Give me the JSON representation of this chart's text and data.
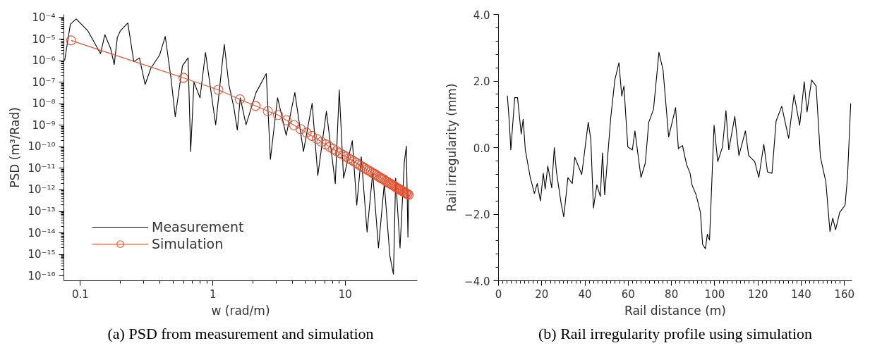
{
  "chart_data": [
    {
      "type": "line",
      "xlabel": "w (rad/m)",
      "ylabel": "PSD (m³/Rad)",
      "log": "xy",
      "grid": false,
      "legend": "bottom left",
      "xlim": [
        0.075,
        35
      ],
      "xticks": [
        0.1,
        1,
        10
      ],
      "ylim": [
        6e-17,
        0.00014
      ],
      "yticks": [
        {
          "value": 0.0001,
          "label": "10⁻⁴"
        },
        {
          "value": 1e-05,
          "label": "10⁻⁵"
        },
        {
          "value": 1e-06,
          "label": "10⁻⁶"
        },
        {
          "value": 1e-07,
          "label": "10⁻⁷"
        },
        {
          "value": 1e-08,
          "label": "10⁻⁸"
        },
        {
          "value": 1e-09,
          "label": "10⁻⁹"
        },
        {
          "value": 1e-10,
          "label": "10⁻¹⁰"
        },
        {
          "value": 1e-11,
          "label": "10⁻¹¹"
        },
        {
          "value": 1e-12,
          "label": "10⁻¹²"
        },
        {
          "value": 1e-13,
          "label": "10⁻¹³"
        },
        {
          "value": 1e-14,
          "label": "10⁻¹⁴"
        },
        {
          "value": 1e-15,
          "label": "10⁻¹⁵"
        },
        {
          "value": 1e-16,
          "label": "10⁻¹⁶"
        }
      ],
      "annotations": [
        "(a) PSD from measurement and simulation"
      ],
      "series": [
        {
          "name": "Measurement",
          "color": "#000000",
          "marker": "none",
          "x": [
            0.076,
            0.084,
            0.093,
            0.114,
            0.142,
            0.153,
            0.169,
            0.18,
            0.19,
            0.2,
            0.228,
            0.253,
            0.279,
            0.308,
            0.34,
            0.396,
            0.437,
            0.484,
            0.52,
            0.59,
            0.65,
            0.68,
            0.72,
            0.8,
            0.88,
            1.05,
            1.22,
            1.32,
            1.44,
            1.53,
            1.61,
            1.78,
            2.12,
            2.53,
            2.72,
            3.08,
            3.58,
            4.16,
            4.83,
            5.62,
            6.2,
            7.2,
            8.4,
            9.0,
            9.7,
            11.3,
            12.2,
            13.2,
            14.6,
            16.1,
            17.8,
            19.7,
            21.7,
            23.1,
            24.0,
            25.9,
            27.9,
            28.9,
            29.7,
            30.1
          ],
          "values": [
            1e-06,
            4.9e-05,
            8.7e-05,
            2.4e-05,
            2.1e-06,
            1.6e-05,
            3.7e-06,
            6.6e-07,
            1.2e-05,
            2.4e-05,
            5.6e-05,
            8.9e-07,
            1.35e-06,
            7.8e-08,
            4.4e-07,
            1.8e-06,
            1.35e-05,
            1.4e-07,
            2.5e-09,
            5.8e-07,
            1.35e-06,
            6e-11,
            1e-07,
            1.9e-08,
            2.4e-06,
            1.05e-09,
            5.7e-06,
            7.8e-08,
            6.8e-09,
            6e-10,
            1.9e-08,
            1.05e-09,
            3.3e-08,
            2.5e-07,
            2.6e-11,
            1.9e-08,
            3.4e-10,
            3.3e-08,
            6e-11,
            1.05e-08,
            4.6e-12,
            4.5e-09,
            1.95e-12,
            4.4e-08,
            3.5e-12,
            1.9e-10,
            1.95e-13,
            3.4e-11,
            1.1e-14,
            6.2e-12,
            2e-15,
            1.95e-12,
            8.5e-16,
            1.2e-16,
            3.5e-12,
            2e-15,
            1.9e-11,
            1.07e-10,
            6.3e-15,
            6.2e-13
          ]
        },
        {
          "name": "Simulation",
          "color": "#e8502e",
          "marker": "circle",
          "x": [
            0.085,
            0.6,
            1.1,
            1.6,
            2.1,
            2.6,
            3.1,
            3.6,
            4.1,
            4.6,
            5.1,
            5.6,
            6.1,
            6.6,
            7.1,
            7.6,
            8.1,
            8.6,
            9.1,
            9.6,
            10.1,
            10.6,
            11.1,
            11.6,
            12.1,
            12.6,
            13.1,
            13.6,
            14.1,
            14.6,
            15.1,
            15.6,
            16.1,
            16.6,
            17.1,
            17.6,
            18.1,
            18.6,
            19.1,
            19.6,
            20.1,
            20.6,
            21.1,
            21.6,
            22.1,
            22.6,
            23.1,
            23.6,
            24.1,
            24.6,
            25.1,
            25.6,
            26.1,
            26.6,
            27.1,
            27.6,
            28.1,
            28.6,
            29.1,
            29.6,
            30.1
          ],
          "values": [
            8.7e-06,
            1.6e-07,
            4.4e-08,
            1.6e-08,
            7.9e-09,
            4.5e-09,
            3e-09,
            1.7e-09,
            1e-09,
            6.6e-10,
            4.5e-10,
            3.2e-10,
            2.3e-10,
            1.7e-10,
            1.3e-10,
            1e-10,
            7.9e-11,
            6.3e-11,
            5.1e-11,
            4.2e-11,
            3.5e-11,
            2.9e-11,
            2.5e-11,
            2.1e-11,
            1.8e-11,
            1.5e-11,
            1.3e-11,
            1.15e-11,
            1e-11,
            8.7e-12,
            7.8e-12,
            6.9e-12,
            6e-12,
            5.5e-12,
            4.9e-12,
            4.4e-12,
            3.9e-12,
            3.5e-12,
            3.2e-12,
            3e-12,
            2.6e-12,
            2.4e-12,
            2.2e-12,
            2e-12,
            1.9e-12,
            1.7e-12,
            1.6e-12,
            1.45e-12,
            1.35e-12,
            1.2e-12,
            1.15e-12,
            1.07e-12,
            1e-12,
            9.3e-13,
            8.7e-13,
            8.1e-13,
            7.6e-13,
            7.1e-13,
            6.6e-13,
            6.2e-13,
            5.9e-13
          ]
        }
      ]
    },
    {
      "type": "line",
      "xlabel": "Rail distance (m)",
      "ylabel": "Rail irregularity (mm)",
      "grid": false,
      "xlim": [
        0,
        163.5
      ],
      "xticks": [
        0,
        20,
        40,
        60,
        80,
        100,
        120,
        140,
        160
      ],
      "ylim": [
        -4,
        4
      ],
      "yticks": [
        {
          "value": -4,
          "label": "−4.0"
        },
        {
          "value": -2,
          "label": "−2.0"
        },
        {
          "value": 0,
          "label": "0.0"
        },
        {
          "value": 2,
          "label": "2.0"
        },
        {
          "value": 4,
          "label": "4.0"
        }
      ],
      "annotations": [
        "(b) Rail irregularity profile using simulation"
      ],
      "series": [
        {
          "color": "#000000",
          "marker": "none",
          "x": [
            4.1,
            5.0,
            5.7,
            7.5,
            8.8,
            10.5,
            11.4,
            12.4,
            14.7,
            16.6,
            17.9,
            19.4,
            20.7,
            21.6,
            22.8,
            24.6,
            25.8,
            26.8,
            29.0,
            30.2,
            32.1,
            34.1,
            35.3,
            38.5,
            41.5,
            42.7,
            43.9,
            45.5,
            47.1,
            48.1,
            49.1,
            51.9,
            53.8,
            55.7,
            57.0,
            58.0,
            59.8,
            61.9,
            63.1,
            65.9,
            67.9,
            69.5,
            71.7,
            74.2,
            76.1,
            78.7,
            80.3,
            81.9,
            83.2,
            85.1,
            87.0,
            88.6,
            89.5,
            91.4,
            93.4,
            94.4,
            95.7,
            96.6,
            97.6,
            99.7,
            101.4,
            103.6,
            105.2,
            106.5,
            109.3,
            111.2,
            114.2,
            115.7,
            118.5,
            120.4,
            122.7,
            124.4,
            126.5,
            128.4,
            131.0,
            134.2,
            136.7,
            139.3,
            141.4,
            142.7,
            144.8,
            146.9,
            148.9,
            151.4,
            153.3,
            154.6,
            155.9,
            157.8,
            160.3,
            161.4,
            162.9
          ],
          "values": [
            1.56,
            0.76,
            -0.07,
            1.5,
            1.5,
            0.41,
            0.85,
            -0.07,
            -0.9,
            -1.38,
            -1.08,
            -1.6,
            -0.77,
            -1.25,
            -0.55,
            -1.21,
            0.0,
            -0.73,
            -1.69,
            -2.08,
            -0.9,
            -1.08,
            -0.29,
            -0.81,
            0.76,
            0.24,
            -1.82,
            -1.12,
            -1.47,
            -0.16,
            -1.42,
            0.89,
            2.03,
            2.55,
            1.55,
            1.85,
            0.02,
            -0.07,
            0.5,
            -0.9,
            -0.46,
            0.76,
            1.15,
            2.86,
            2.33,
            0.32,
            0.76,
            1.2,
            -0.03,
            0.06,
            -0.51,
            -0.77,
            -1.12,
            -1.42,
            -1.95,
            -2.91,
            -3.04,
            -2.6,
            -2.78,
            0.67,
            -0.42,
            0.02,
            1.11,
            -0.07,
            0.94,
            -0.24,
            0.5,
            -0.24,
            -0.42,
            -0.9,
            0.1,
            -0.73,
            -0.77,
            0.8,
            1.24,
            0.28,
            1.59,
            0.67,
            1.98,
            1.07,
            2.03,
            1.85,
            -0.29,
            -1.03,
            -2.52,
            -2.12,
            -2.47,
            -1.95,
            -1.73,
            -0.9,
            1.33
          ]
        }
      ]
    }
  ]
}
